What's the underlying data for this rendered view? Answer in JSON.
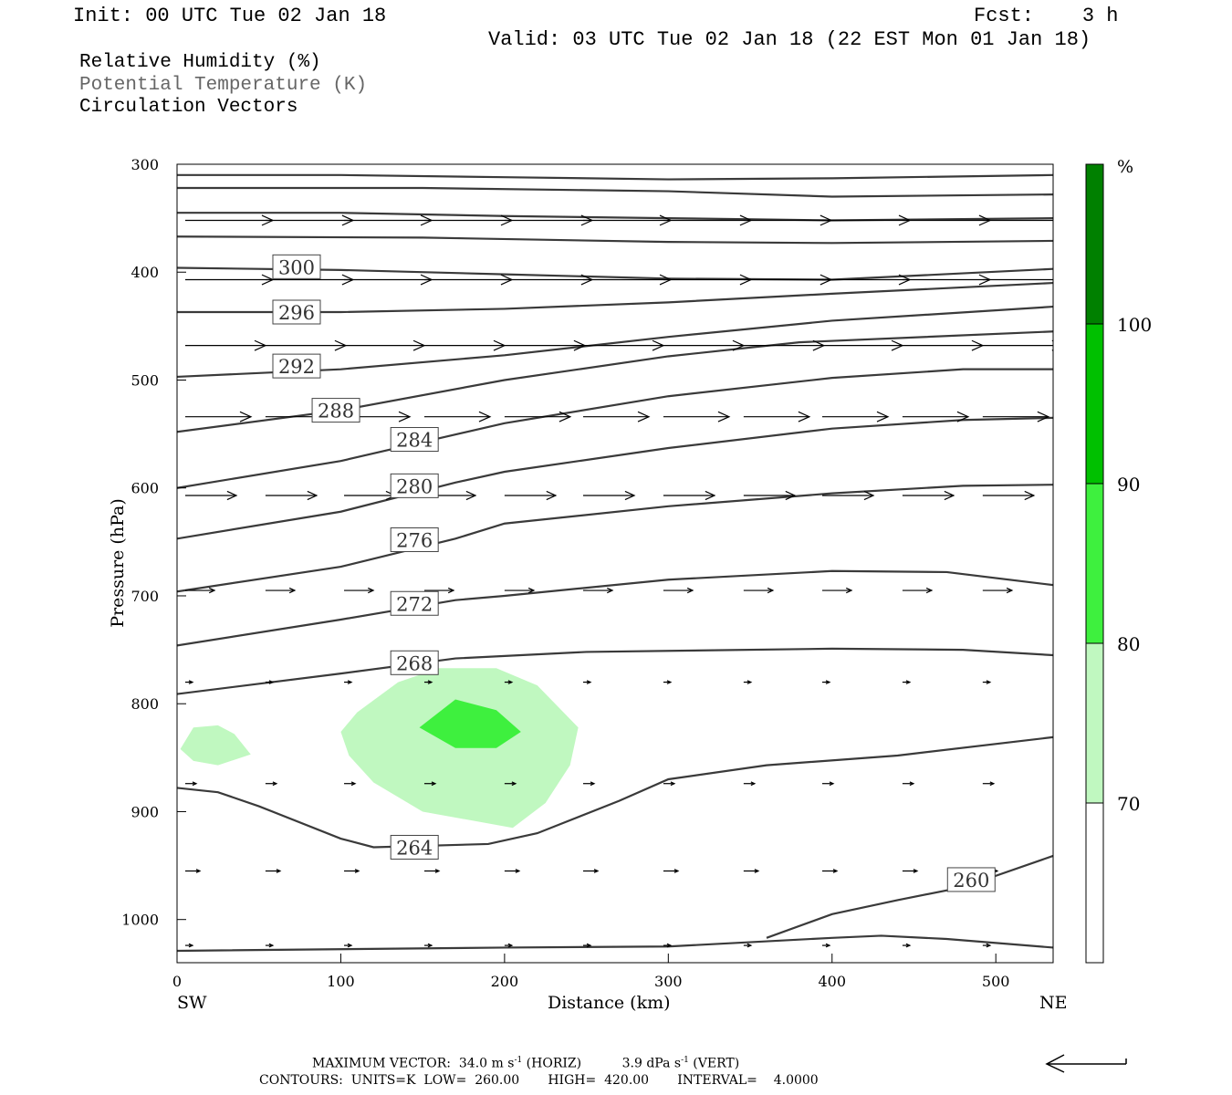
{
  "header": {
    "init": "Init: 00 UTC Tue 02 Jan 18",
    "fcst": "Fcst:    3 h",
    "valid": "Valid: 03 UTC Tue 02 Jan 18 (22 EST Mon 01 Jan 18)"
  },
  "legend": {
    "rh": "Relative Humidity (%)",
    "theta": "Potential Temperature (K)",
    "vectors": "Circulation Vectors"
  },
  "colors": {
    "theta_line": "#3a3a3a",
    "rh_70": "#c0f8c0",
    "rh_80": "#3ef03e",
    "rh_90": "#00c000",
    "rh_100": "#008000"
  },
  "chart_data": {
    "type": "contour-cross-section",
    "xlabel": "Distance (km)",
    "ylabel": "Pressure (hPa)",
    "xlim": [
      0,
      535
    ],
    "ylim": [
      1040,
      300
    ],
    "y_scale": "pressure",
    "x_ticks": [
      0,
      100,
      200,
      300,
      400,
      500
    ],
    "y_ticks": [
      300,
      400,
      500,
      600,
      700,
      800,
      900,
      1000
    ],
    "x_end_labels": {
      "left": "SW",
      "right": "NE"
    },
    "colorbar": {
      "unit_label": "%",
      "levels": [
        70,
        80,
        90,
        100
      ],
      "colors": [
        "#ffffff",
        "#c0f8c0",
        "#3ef03e",
        "#00c000",
        "#008000"
      ]
    },
    "theta_contours": [
      {
        "label": "300",
        "label_pos": [
          73,
          395
        ],
        "points": [
          [
            0,
            396
          ],
          [
            100,
            398
          ],
          [
            200,
            402
          ],
          [
            300,
            406
          ],
          [
            400,
            407
          ],
          [
            535,
            397
          ]
        ]
      },
      {
        "label": "296",
        "label_pos": [
          73,
          437
        ],
        "points": [
          [
            0,
            437
          ],
          [
            100,
            437
          ],
          [
            200,
            434
          ],
          [
            300,
            428
          ],
          [
            400,
            420
          ],
          [
            535,
            410
          ]
        ]
      },
      {
        "label": "292",
        "label_pos": [
          73,
          487
        ],
        "points": [
          [
            0,
            497
          ],
          [
            100,
            490
          ],
          [
            200,
            477
          ],
          [
            300,
            460
          ],
          [
            400,
            445
          ],
          [
            535,
            432
          ]
        ]
      },
      {
        "label": "288",
        "label_pos": [
          97,
          528
        ],
        "points": [
          [
            0,
            548
          ],
          [
            100,
            528
          ],
          [
            200,
            500
          ],
          [
            300,
            478
          ],
          [
            380,
            465
          ],
          [
            535,
            455
          ]
        ]
      },
      {
        "label": "284",
        "label_pos": [
          145,
          555
        ],
        "points": [
          [
            0,
            600
          ],
          [
            100,
            575
          ],
          [
            200,
            540
          ],
          [
            300,
            515
          ],
          [
            400,
            498
          ],
          [
            480,
            490
          ],
          [
            535,
            490
          ]
        ]
      },
      {
        "label": "280",
        "label_pos": [
          145,
          598
        ],
        "points": [
          [
            0,
            647
          ],
          [
            100,
            622
          ],
          [
            170,
            595
          ],
          [
            200,
            585
          ],
          [
            300,
            563
          ],
          [
            400,
            545
          ],
          [
            480,
            537
          ],
          [
            535,
            535
          ]
        ]
      },
      {
        "label": "276",
        "label_pos": [
          145,
          648
        ],
        "points": [
          [
            0,
            696
          ],
          [
            100,
            673
          ],
          [
            170,
            647
          ],
          [
            200,
            633
          ],
          [
            300,
            617
          ],
          [
            400,
            605
          ],
          [
            480,
            598
          ],
          [
            535,
            597
          ]
        ]
      },
      {
        "label": "272",
        "label_pos": [
          145,
          707
        ],
        "points": [
          [
            0,
            746
          ],
          [
            100,
            722
          ],
          [
            170,
            704
          ],
          [
            200,
            700
          ],
          [
            300,
            685
          ],
          [
            400,
            677
          ],
          [
            470,
            678
          ],
          [
            535,
            690
          ]
        ]
      },
      {
        "label": "268",
        "label_pos": [
          145,
          762
        ],
        "points": [
          [
            0,
            791
          ],
          [
            100,
            772
          ],
          [
            170,
            758
          ],
          [
            250,
            752
          ],
          [
            400,
            749
          ],
          [
            480,
            750
          ],
          [
            535,
            755
          ]
        ]
      },
      {
        "label": "264",
        "label_pos": [
          145,
          933
        ],
        "points": [
          [
            0,
            878
          ],
          [
            25,
            882
          ],
          [
            50,
            895
          ],
          [
            100,
            925
          ],
          [
            120,
            933
          ],
          [
            190,
            930
          ],
          [
            220,
            920
          ],
          [
            270,
            890
          ],
          [
            300,
            870
          ],
          [
            360,
            857
          ],
          [
            440,
            848
          ],
          [
            535,
            831
          ]
        ]
      },
      {
        "label": "260",
        "label_pos": [
          485,
          963
        ],
        "points": [
          [
            360,
            1017
          ],
          [
            400,
            995
          ],
          [
            440,
            982
          ],
          [
            480,
            970
          ],
          [
            535,
            941
          ]
        ]
      },
      {
        "label": "",
        "label_pos": null,
        "points": [
          [
            0,
            1029
          ],
          [
            200,
            1026
          ],
          [
            300,
            1025
          ],
          [
            400,
            1017
          ],
          [
            430,
            1015
          ],
          [
            470,
            1018
          ],
          [
            535,
            1026
          ]
        ]
      },
      {
        "label": "",
        "label_pos": null,
        "points": [
          [
            0,
            310
          ],
          [
            100,
            310
          ],
          [
            200,
            312
          ],
          [
            300,
            314
          ],
          [
            400,
            313
          ],
          [
            535,
            310
          ]
        ]
      },
      {
        "label": "",
        "label_pos": null,
        "points": [
          [
            0,
            322
          ],
          [
            150,
            322
          ],
          [
            300,
            325
          ],
          [
            400,
            330
          ],
          [
            535,
            328
          ]
        ]
      },
      {
        "label": "",
        "label_pos": null,
        "points": [
          [
            0,
            345
          ],
          [
            100,
            345
          ],
          [
            200,
            348
          ],
          [
            300,
            350
          ],
          [
            400,
            352
          ],
          [
            535,
            350
          ]
        ]
      },
      {
        "label": "",
        "label_pos": null,
        "points": [
          [
            0,
            367
          ],
          [
            150,
            368
          ],
          [
            300,
            372
          ],
          [
            400,
            373
          ],
          [
            535,
            371
          ]
        ]
      }
    ],
    "rh_regions": [
      {
        "level": 70,
        "points": [
          [
            2,
            842
          ],
          [
            10,
            822
          ],
          [
            25,
            820
          ],
          [
            35,
            828
          ],
          [
            45,
            847
          ],
          [
            25,
            857
          ],
          [
            10,
            853
          ]
        ]
      },
      {
        "level": 70,
        "points": [
          [
            100,
            826
          ],
          [
            110,
            808
          ],
          [
            135,
            780
          ],
          [
            160,
            767
          ],
          [
            195,
            767
          ],
          [
            220,
            783
          ],
          [
            245,
            822
          ],
          [
            240,
            857
          ],
          [
            225,
            892
          ],
          [
            205,
            915
          ],
          [
            150,
            900
          ],
          [
            120,
            873
          ],
          [
            105,
            848
          ]
        ]
      },
      {
        "level": 80,
        "points": [
          [
            148,
            822
          ],
          [
            170,
            796
          ],
          [
            195,
            806
          ],
          [
            210,
            826
          ],
          [
            195,
            841
          ],
          [
            170,
            841
          ]
        ]
      }
    ],
    "vectors": {
      "max_horiz": "34.0 m s-1",
      "max_vert": "3.9 dPa s-1",
      "rows": [
        {
          "p": 352,
          "u": 24,
          "w": 0
        },
        {
          "p": 407,
          "u": 24,
          "w": 0
        },
        {
          "p": 468,
          "u": 22,
          "w": 0
        },
        {
          "p": 534,
          "u": 18,
          "w": 0
        },
        {
          "p": 607,
          "u": 14,
          "w": 0
        },
        {
          "p": 695,
          "u": 8,
          "w": 0
        },
        {
          "p": 780,
          "u": 2,
          "w": 0
        },
        {
          "p": 874,
          "u": 3,
          "w": 0
        },
        {
          "p": 955,
          "u": 4,
          "w": 0
        },
        {
          "p": 1024,
          "u": 2,
          "w": 0
        }
      ]
    }
  },
  "footer": {
    "max_vector_label": "MAXIMUM VECTOR:",
    "max_vector_horiz": "34.0 m s",
    "horiz_tag": "(HORIZ)",
    "max_vector_vert": "3.9 dPa s",
    "vert_tag": "(VERT)",
    "sup": "-1",
    "contours": "CONTOURS:  UNITS=K  LOW=  260.00       HIGH=  420.00       INTERVAL=    4.0000"
  }
}
